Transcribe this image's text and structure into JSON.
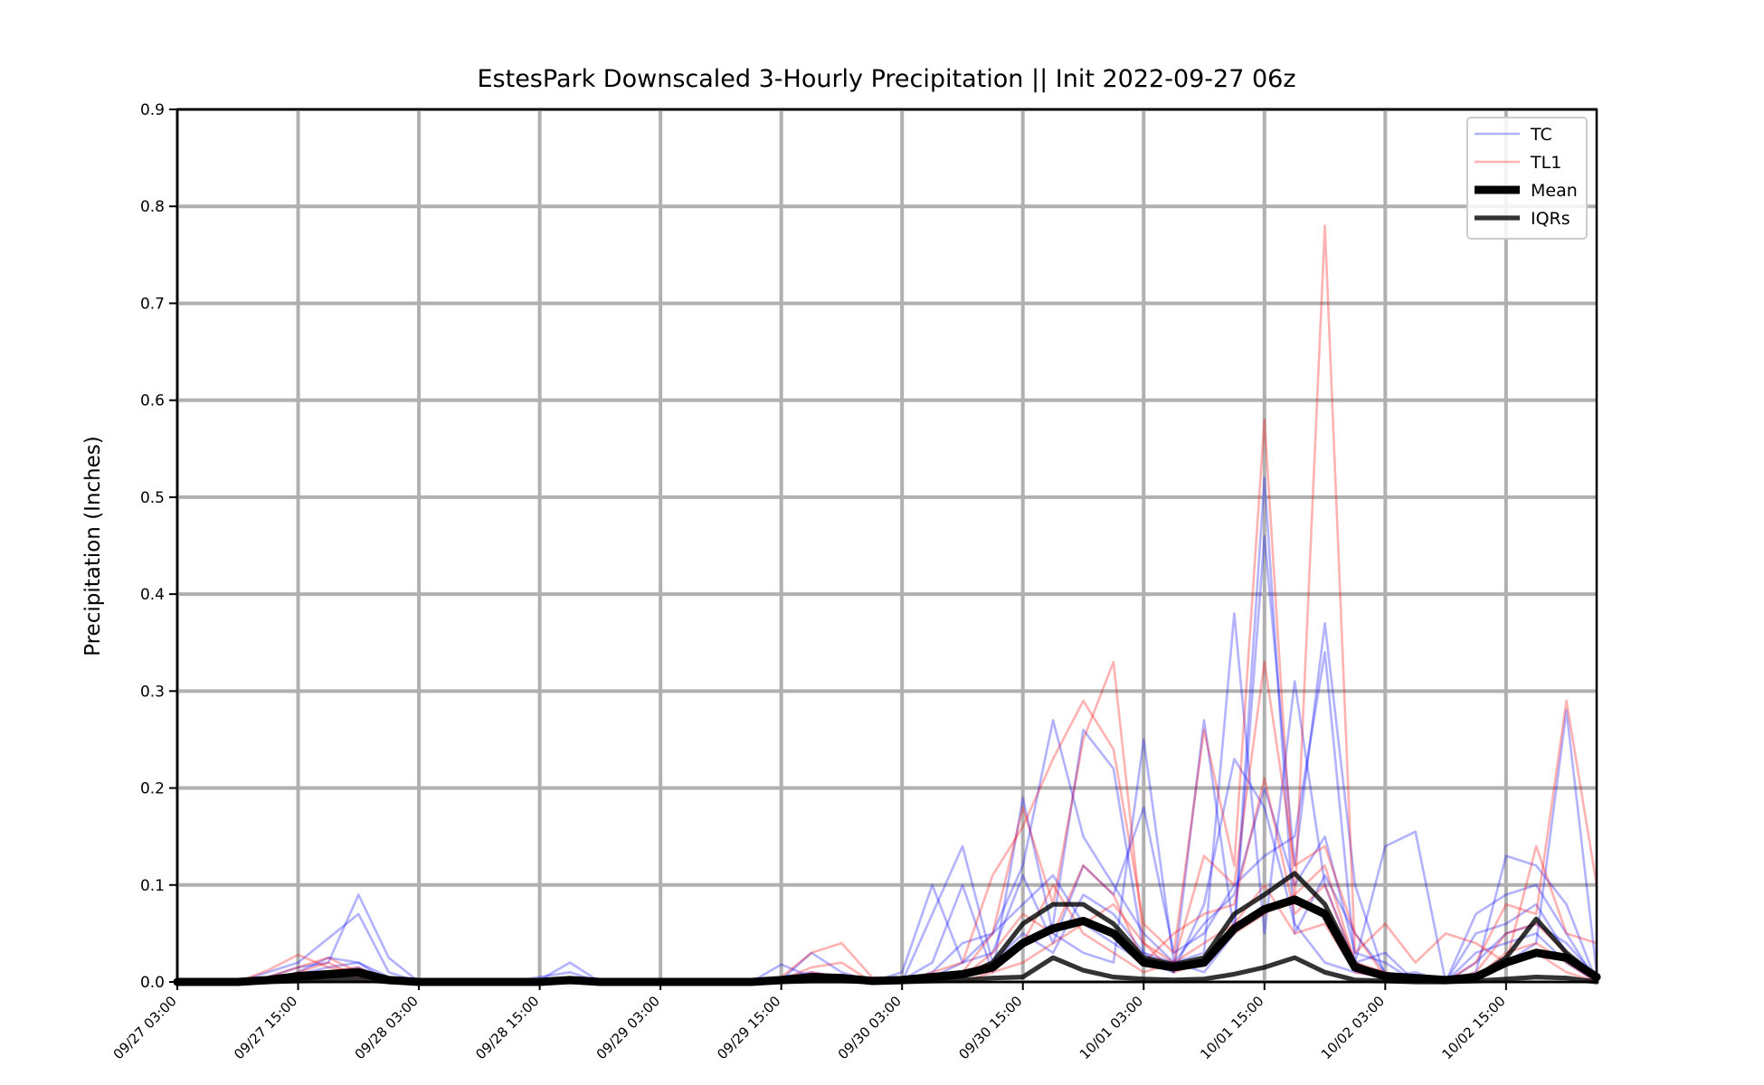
{
  "chart_data": {
    "type": "line",
    "title": "EstesPark Downscaled 3-Hourly Precipitation || Init 2022-09-27 06z",
    "xlabel": "",
    "ylabel": "Precipitation (Inches)",
    "ylim": [
      0,
      0.9
    ],
    "y_ticks": [
      "0.0",
      "0.1",
      "0.2",
      "0.3",
      "0.4",
      "0.5",
      "0.6",
      "0.7",
      "0.8",
      "0.9"
    ],
    "x_ticks": [
      "09/27 03:00",
      "09/27 15:00",
      "09/28 03:00",
      "09/28 15:00",
      "09/29 03:00",
      "09/29 15:00",
      "09/30 03:00",
      "09/30 15:00",
      "10/01 03:00",
      "10/01 15:00",
      "10/02 03:00",
      "10/02 15:00"
    ],
    "x": [
      "09/27 03:00",
      "09/27 06:00",
      "09/27 09:00",
      "09/27 12:00",
      "09/27 15:00",
      "09/27 18:00",
      "09/27 21:00",
      "09/28 00:00",
      "09/28 03:00",
      "09/28 06:00",
      "09/28 09:00",
      "09/28 12:00",
      "09/28 15:00",
      "09/28 18:00",
      "09/28 21:00",
      "09/29 00:00",
      "09/29 03:00",
      "09/29 06:00",
      "09/29 09:00",
      "09/29 12:00",
      "09/29 15:00",
      "09/29 18:00",
      "09/29 21:00",
      "09/30 00:00",
      "09/30 03:00",
      "09/30 06:00",
      "09/30 09:00",
      "09/30 12:00",
      "09/30 15:00",
      "09/30 18:00",
      "09/30 21:00",
      "10/01 00:00",
      "10/01 03:00",
      "10/01 06:00",
      "10/01 09:00",
      "10/01 12:00",
      "10/01 15:00",
      "10/01 18:00",
      "10/01 21:00",
      "10/02 00:00",
      "10/02 03:00",
      "10/02 06:00",
      "10/02 09:00",
      "10/02 12:00",
      "10/02 15:00",
      "10/02 18:00",
      "10/02 21:00",
      "10/03 00:00"
    ],
    "grid": true,
    "legend_position": "top-right",
    "legend": [
      {
        "label": "TC",
        "color": "#0000ff",
        "opacity": 0.3,
        "width": 2
      },
      {
        "label": "TL1",
        "color": "#ff0000",
        "opacity": 0.3,
        "width": 2
      },
      {
        "label": "Mean",
        "color": "#000000",
        "opacity": 1,
        "width": 7
      },
      {
        "label": "IQRs",
        "color": "#000000",
        "opacity": 0.8,
        "width": 4
      }
    ],
    "series": [
      {
        "group": "TC",
        "color": "#0000ff",
        "values": [
          0,
          0,
          0,
          0.005,
          0.015,
          0.02,
          0.09,
          0.025,
          0,
          0,
          0,
          0,
          0.005,
          0.01,
          0,
          0,
          0,
          0,
          0,
          0,
          0.005,
          0.01,
          0.005,
          0,
          0.002,
          0.02,
          0.1,
          0.01,
          0.19,
          0.05,
          0.03,
          0.02,
          0.25,
          0.02,
          0.01,
          0.05,
          0.52,
          0.05,
          0.11,
          0.05,
          0.01,
          0,
          0,
          0.01,
          0.13,
          0.12,
          0.08,
          0
        ]
      },
      {
        "group": "TC",
        "color": "#0000ff",
        "values": [
          0,
          0,
          0,
          0.01,
          0.02,
          0.045,
          0.07,
          0.01,
          0,
          0,
          0,
          0,
          0.002,
          0.02,
          0,
          0,
          0,
          0,
          0,
          0,
          0.002,
          0.03,
          0.01,
          0,
          0.01,
          0.1,
          0.02,
          0.05,
          0.12,
          0.27,
          0.15,
          0.1,
          0.05,
          0.02,
          0.03,
          0.38,
          0.05,
          0.31,
          0.1,
          0.02,
          0.14,
          0.155,
          0,
          0.005,
          0.02,
          0.04,
          0.28,
          0.01
        ]
      },
      {
        "group": "TC",
        "color": "#0000ff",
        "values": [
          0,
          0,
          0,
          0,
          0.01,
          0.025,
          0.02,
          0,
          0,
          0,
          0,
          0,
          0,
          0.005,
          0,
          0,
          0,
          0,
          0,
          0,
          0.018,
          0.005,
          0,
          0,
          0,
          0.07,
          0.14,
          0.02,
          0.04,
          0.06,
          0.26,
          0.22,
          0.03,
          0.01,
          0.27,
          0.05,
          0.46,
          0.12,
          0.37,
          0.1,
          0.005,
          0.01,
          0,
          0.07,
          0.09,
          0.1,
          0.05,
          0
        ]
      },
      {
        "group": "TC",
        "color": "#0000ff",
        "values": [
          0,
          0,
          0,
          0,
          0.005,
          0.01,
          0.015,
          0,
          0,
          0,
          0,
          0,
          0,
          0,
          0,
          0,
          0,
          0,
          0,
          0,
          0,
          0.005,
          0,
          0,
          0,
          0.005,
          0.02,
          0.03,
          0.11,
          0.04,
          0.12,
          0.09,
          0.18,
          0.03,
          0.05,
          0.1,
          0.13,
          0.15,
          0.34,
          0.02,
          0.03,
          0,
          0,
          0.05,
          0.06,
          0.08,
          0.03,
          0
        ]
      },
      {
        "group": "TC",
        "color": "#0000ff",
        "values": [
          0,
          0,
          0,
          0.002,
          0.008,
          0.015,
          0.02,
          0.005,
          0,
          0,
          0,
          0,
          0,
          0,
          0,
          0,
          0,
          0,
          0,
          0,
          0,
          0,
          0,
          0,
          0,
          0.01,
          0.04,
          0.05,
          0.08,
          0.11,
          0.06,
          0.04,
          0.02,
          0.01,
          0.08,
          0.23,
          0.18,
          0.06,
          0.02,
          0.01,
          0.005,
          0,
          0,
          0.02,
          0.05,
          0.06,
          0.04,
          0.005
        ]
      },
      {
        "group": "TC",
        "color": "#0000ff",
        "values": [
          0,
          0,
          0,
          0,
          0,
          0.005,
          0.01,
          0,
          0,
          0,
          0,
          0,
          0,
          0,
          0,
          0,
          0,
          0,
          0,
          0,
          0,
          0,
          0,
          0,
          0,
          0,
          0.005,
          0.02,
          0.05,
          0.03,
          0.09,
          0.07,
          0.03,
          0.02,
          0.06,
          0.09,
          0.2,
          0.1,
          0.15,
          0.03,
          0.02,
          0,
          0,
          0.03,
          0.04,
          0.05,
          0.02,
          0
        ]
      },
      {
        "group": "TL1",
        "color": "#ff0000",
        "values": [
          0,
          0,
          0,
          0.012,
          0.028,
          0.015,
          0.01,
          0,
          0,
          0,
          0,
          0,
          0,
          0,
          0,
          0,
          0,
          0,
          0,
          0,
          0.005,
          0.03,
          0.04,
          0.005,
          0,
          0.01,
          0.02,
          0.11,
          0.16,
          0.23,
          0.29,
          0.24,
          0.06,
          0.03,
          0.26,
          0.12,
          0.58,
          0.08,
          0.78,
          0.03,
          0.06,
          0.02,
          0.05,
          0.04,
          0.02,
          0.14,
          0.05,
          0.04
        ]
      },
      {
        "group": "TL1",
        "color": "#ff0000",
        "values": [
          0,
          0,
          0,
          0.005,
          0.015,
          0.025,
          0.01,
          0,
          0,
          0,
          0,
          0,
          0,
          0,
          0,
          0,
          0,
          0,
          0,
          0,
          0.002,
          0.015,
          0.02,
          0,
          0,
          0.005,
          0.01,
          0.05,
          0.18,
          0.08,
          0.25,
          0.33,
          0.04,
          0.02,
          0.13,
          0.1,
          0.33,
          0.12,
          0.14,
          0.05,
          0.005,
          0,
          0,
          0.02,
          0.08,
          0.07,
          0.29,
          0.1
        ]
      },
      {
        "group": "TL1",
        "color": "#ff0000",
        "values": [
          0,
          0,
          0,
          0,
          0.01,
          0.02,
          0.005,
          0,
          0,
          0,
          0,
          0,
          0,
          0,
          0,
          0,
          0,
          0,
          0,
          0,
          0,
          0.01,
          0.005,
          0,
          0,
          0,
          0.005,
          0.03,
          0.07,
          0.05,
          0.12,
          0.09,
          0.02,
          0.05,
          0.07,
          0.08,
          0.21,
          0.07,
          0.1,
          0.02,
          0.01,
          0,
          0,
          0.01,
          0.05,
          0.06,
          0.03,
          0
        ]
      },
      {
        "group": "TL1",
        "color": "#ff0000",
        "values": [
          0,
          0,
          0,
          0,
          0.005,
          0.01,
          0.015,
          0,
          0,
          0,
          0,
          0,
          0,
          0,
          0,
          0,
          0,
          0,
          0,
          0,
          0,
          0.005,
          0,
          0,
          0,
          0.002,
          0.01,
          0.02,
          0.04,
          0.1,
          0.05,
          0.03,
          0.01,
          0.02,
          0.04,
          0.06,
          0.1,
          0.05,
          0.06,
          0.01,
          0.005,
          0,
          0,
          0.005,
          0.03,
          0.04,
          0.02,
          0
        ]
      },
      {
        "group": "TL1",
        "color": "#ff0000",
        "values": [
          0,
          0,
          0,
          0,
          0,
          0.005,
          0.01,
          0,
          0,
          0,
          0,
          0,
          0,
          0,
          0,
          0,
          0,
          0,
          0,
          0,
          0,
          0,
          0,
          0,
          0,
          0,
          0,
          0.01,
          0.02,
          0.04,
          0.06,
          0.08,
          0.04,
          0.01,
          0.02,
          0.05,
          0.07,
          0.09,
          0.12,
          0.02,
          0.005,
          0,
          0,
          0.005,
          0.02,
          0.03,
          0.01,
          0
        ]
      },
      {
        "group": "Mean",
        "color": "#000000",
        "values": [
          0,
          0,
          0,
          0.002,
          0.006,
          0.008,
          0.01,
          0.002,
          0,
          0,
          0,
          0,
          0,
          0.002,
          0,
          0,
          0,
          0,
          0,
          0,
          0.002,
          0.005,
          0.004,
          0.001,
          0.002,
          0.005,
          0.008,
          0.015,
          0.04,
          0.055,
          0.063,
          0.05,
          0.02,
          0.015,
          0.02,
          0.055,
          0.075,
          0.085,
          0.07,
          0.015,
          0.006,
          0.004,
          0.002,
          0.005,
          0.02,
          0.03,
          0.025,
          0.005
        ]
      },
      {
        "group": "IQRs",
        "color": "#000000",
        "values": [
          0,
          0,
          0,
          0.001,
          0.004,
          0.006,
          0.008,
          0.001,
          0,
          0,
          0,
          0,
          0,
          0.001,
          0,
          0,
          0,
          0,
          0,
          0,
          0.001,
          0.004,
          0.003,
          0,
          0.001,
          0.004,
          0.006,
          0.02,
          0.06,
          0.08,
          0.08,
          0.06,
          0.025,
          0.018,
          0.025,
          0.07,
          0.09,
          0.112,
          0.08,
          0.018,
          0.006,
          0.003,
          0.002,
          0.005,
          0.025,
          0.065,
          0.03,
          0.005
        ]
      },
      {
        "group": "IQRs",
        "color": "#000000",
        "values": [
          0,
          0,
          0,
          0,
          0.001,
          0.002,
          0.003,
          0,
          0,
          0,
          0,
          0,
          0,
          0,
          0,
          0,
          0,
          0,
          0,
          0,
          0,
          0.001,
          0.001,
          0,
          0,
          0.001,
          0.002,
          0.004,
          0.005,
          0.025,
          0.012,
          0.005,
          0.003,
          0.002,
          0.003,
          0.008,
          0.015,
          0.025,
          0.01,
          0.002,
          0.001,
          0,
          0,
          0.001,
          0.003,
          0.005,
          0.004,
          0
        ]
      }
    ]
  }
}
